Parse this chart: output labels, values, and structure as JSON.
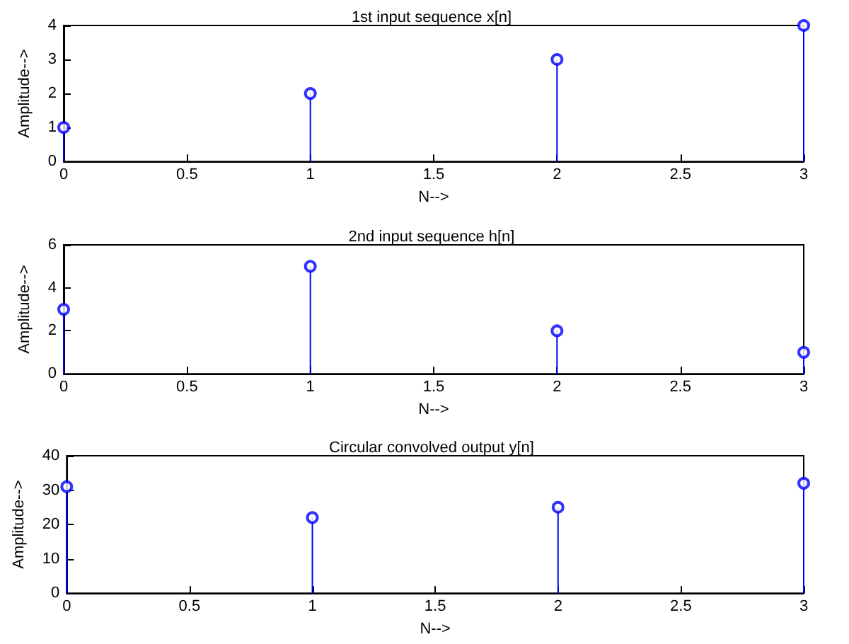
{
  "chart_data": [
    {
      "type": "lollipop",
      "title": "1st input sequence x[n]",
      "xlabel": "N-->",
      "ylabel": "Amplitude-->",
      "x": [
        0,
        1,
        2,
        3
      ],
      "values": [
        1,
        2,
        3,
        4
      ],
      "color": "#0000ff",
      "marker": "circle",
      "xlim": [
        0,
        3
      ],
      "xticks": [
        0,
        0.5,
        1,
        1.5,
        2,
        2.5,
        3
      ],
      "ylim": [
        0,
        4
      ],
      "yticks": [
        0,
        1,
        2,
        3,
        4
      ],
      "grid": false
    },
    {
      "type": "lollipop",
      "title": "2nd input sequence h[n]",
      "xlabel": "N-->",
      "ylabel": "Amplitude-->",
      "x": [
        0,
        1,
        2,
        3
      ],
      "values": [
        3,
        5,
        2,
        1
      ],
      "color": "#0000ff",
      "marker": "circle",
      "xlim": [
        0,
        3
      ],
      "xticks": [
        0,
        0.5,
        1,
        1.5,
        2,
        2.5,
        3
      ],
      "ylim": [
        0,
        6
      ],
      "yticks": [
        0,
        2,
        4,
        6
      ],
      "grid": false
    },
    {
      "type": "lollipop",
      "title": "Circular convolved output y[n]",
      "xlabel": "N-->",
      "ylabel": "Amplitude-->",
      "x": [
        0,
        1,
        2,
        3
      ],
      "values": [
        31,
        22,
        25,
        32
      ],
      "color": "#0000ff",
      "marker": "circle",
      "xlim": [
        0,
        3
      ],
      "xticks": [
        0,
        0.5,
        1,
        1.5,
        2,
        2.5,
        3
      ],
      "ylim": [
        0,
        40
      ],
      "yticks": [
        0,
        10,
        20,
        30,
        40
      ],
      "grid": false
    }
  ]
}
